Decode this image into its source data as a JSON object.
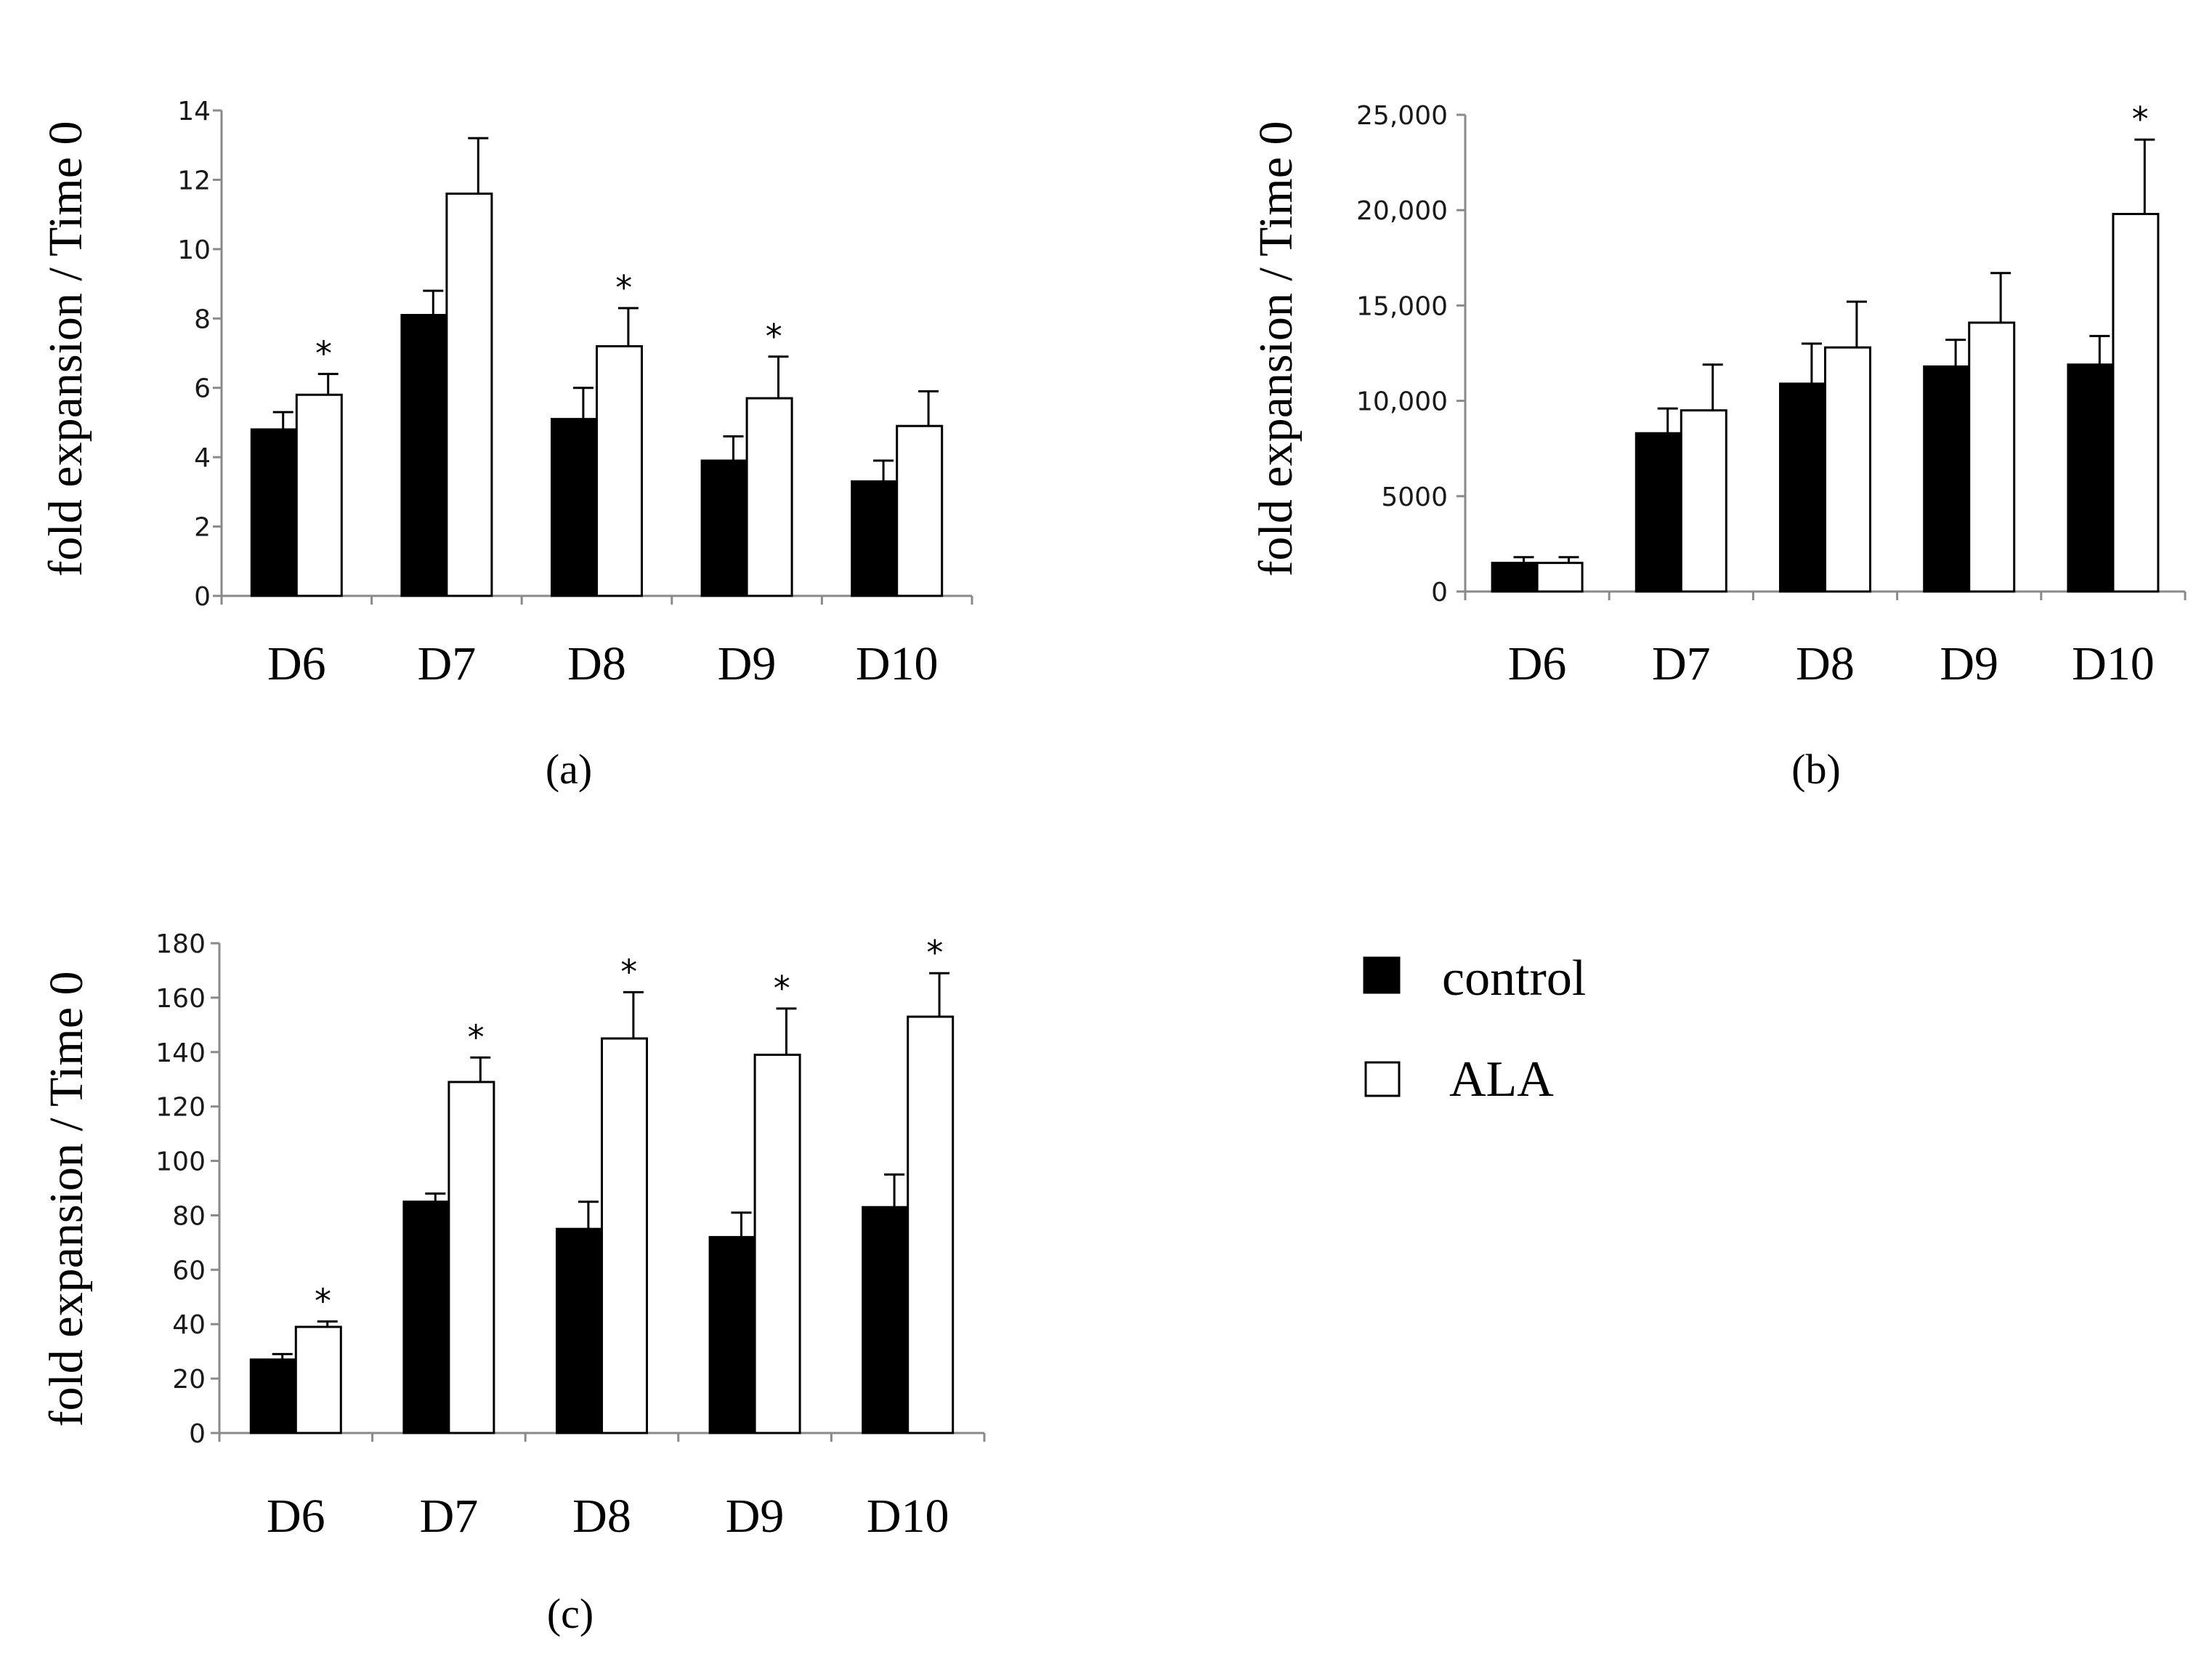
{
  "chart_data": [
    {
      "type": "bar",
      "panel": "(a)",
      "categories": [
        "D6",
        "D7",
        "D8",
        "D9",
        "D10"
      ],
      "series": [
        {
          "name": "control",
          "values": [
            4.8,
            8.1,
            5.1,
            3.9,
            3.3
          ],
          "errors": [
            0.5,
            0.7,
            0.9,
            0.7,
            0.6
          ]
        },
        {
          "name": "ALA",
          "values": [
            5.8,
            11.6,
            7.2,
            5.7,
            4.9
          ],
          "errors": [
            0.6,
            1.6,
            1.1,
            1.2,
            1.0
          ]
        }
      ],
      "significant": [
        true,
        false,
        true,
        true,
        false
      ],
      "significance_marker": "*",
      "ylabel": "fold expansion / Time 0",
      "ylim": [
        0,
        14
      ],
      "yticks": [
        0,
        2,
        4,
        6,
        8,
        10,
        12,
        14
      ],
      "ytick_labels": [
        "0",
        "2",
        "4",
        "6",
        "8",
        "10",
        "12",
        "14"
      ]
    },
    {
      "type": "bar",
      "panel": "(b)",
      "categories": [
        "D6",
        "D7",
        "D8",
        "D9",
        "D10"
      ],
      "series": [
        {
          "name": "control",
          "values": [
            1500,
            8300,
            10900,
            11800,
            11900
          ],
          "errors": [
            300,
            1300,
            2100,
            1400,
            1500
          ]
        },
        {
          "name": "ALA",
          "values": [
            1500,
            9500,
            12800,
            14100,
            19800
          ],
          "errors": [
            300,
            2400,
            2400,
            2600,
            3900
          ]
        }
      ],
      "significant": [
        false,
        false,
        false,
        false,
        true
      ],
      "significance_marker": "*",
      "ylabel": "fold expansion / Time 0",
      "ylim": [
        0,
        25000
      ],
      "yticks": [
        0,
        5000,
        10000,
        15000,
        20000,
        25000
      ],
      "ytick_labels": [
        "0",
        "5000",
        "10,000",
        "15,000",
        "20,000",
        "25,000"
      ]
    },
    {
      "type": "bar",
      "panel": "(c)",
      "categories": [
        "D6",
        "D7",
        "D8",
        "D9",
        "D10"
      ],
      "series": [
        {
          "name": "control",
          "values": [
            27,
            85,
            75,
            72,
            83
          ],
          "errors": [
            2,
            3,
            10,
            9,
            12
          ]
        },
        {
          "name": "ALA",
          "values": [
            39,
            129,
            145,
            139,
            153
          ],
          "errors": [
            2,
            9,
            17,
            17,
            16
          ]
        }
      ],
      "significant": [
        true,
        true,
        true,
        true,
        true
      ],
      "significance_marker": "*",
      "ylabel": "fold expansion / Time 0",
      "ylim": [
        0,
        180
      ],
      "yticks": [
        0,
        20,
        40,
        60,
        80,
        100,
        120,
        140,
        160,
        180
      ],
      "ytick_labels": [
        "0",
        "20",
        "40",
        "60",
        "80",
        "100",
        "120",
        "140",
        "160",
        "180"
      ]
    }
  ],
  "legend": {
    "items": [
      {
        "label": "control",
        "fill": "#000000"
      },
      {
        "label": "ALA",
        "fill": "#ffffff"
      }
    ]
  },
  "colors": {
    "control": "#000000",
    "ala": "#ffffff",
    "outline": "#000000",
    "axis": "#8a8a8a"
  }
}
